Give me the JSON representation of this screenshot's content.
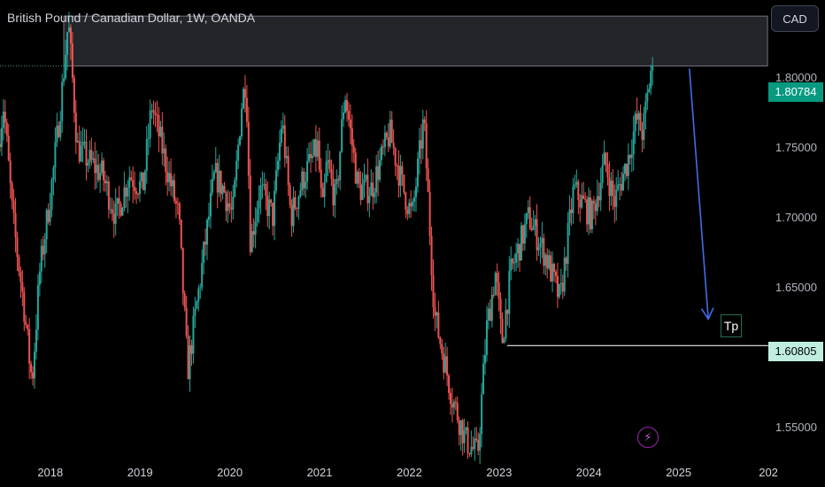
{
  "header": {
    "title": "British Pound / Canadian Dollar, 1W, OANDA",
    "currency_button": "CAD"
  },
  "chart_data": {
    "type": "candlestick",
    "symbol": "GBPCAD",
    "interval": "1W",
    "source": "OANDA",
    "x_ticks": [
      "2018",
      "2019",
      "2020",
      "2021",
      "2022",
      "2023",
      "2024",
      "2025",
      "202"
    ],
    "y_ticks": [
      "1.80000",
      "1.75000",
      "1.70000",
      "1.65000",
      "1.60000",
      "1.55000"
    ],
    "y_tick_values": [
      1.8,
      1.75,
      1.7,
      1.65,
      1.6,
      1.55
    ],
    "ylim": [
      1.526,
      1.855
    ],
    "xlim": [
      2017.44,
      2025.94
    ],
    "current_price_label": "1.80784",
    "target_price_label": "1.60805",
    "target_text": "Tp",
    "resistance_zone": {
      "x_start": 2018.15,
      "x_end": 2025.99,
      "y_low": 1.80784,
      "y_high": 1.8435
    },
    "target_line": {
      "x_start": 2023.09,
      "x_end": 2025.99,
      "y": 1.60805
    },
    "arrow": {
      "from": [
        2025.12,
        1.806
      ],
      "to": [
        2025.33,
        1.627
      ],
      "color": "#3f6ee8"
    },
    "waypoints": [
      [
        2017.44,
        1.752
      ],
      [
        2017.5,
        1.78
      ],
      [
        2017.6,
        1.7
      ],
      [
        2017.72,
        1.64
      ],
      [
        2017.8,
        1.59
      ],
      [
        2017.82,
        1.585
      ],
      [
        2017.9,
        1.66
      ],
      [
        2018.05,
        1.73
      ],
      [
        2018.15,
        1.79
      ],
      [
        2018.22,
        1.84
      ],
      [
        2018.32,
        1.75
      ],
      [
        2018.45,
        1.74
      ],
      [
        2018.6,
        1.73
      ],
      [
        2018.75,
        1.7
      ],
      [
        2018.9,
        1.73
      ],
      [
        2019.05,
        1.72
      ],
      [
        2019.15,
        1.78
      ],
      [
        2019.3,
        1.74
      ],
      [
        2019.45,
        1.7
      ],
      [
        2019.55,
        1.59
      ],
      [
        2019.7,
        1.66
      ],
      [
        2019.85,
        1.73
      ],
      [
        2019.95,
        1.72
      ],
      [
        2020.05,
        1.7
      ],
      [
        2020.15,
        1.78
      ],
      [
        2020.2,
        1.8
      ],
      [
        2020.25,
        1.68
      ],
      [
        2020.35,
        1.72
      ],
      [
        2020.5,
        1.7
      ],
      [
        2020.6,
        1.77
      ],
      [
        2020.7,
        1.7
      ],
      [
        2020.85,
        1.73
      ],
      [
        2021.0,
        1.75
      ],
      [
        2021.05,
        1.7
      ],
      [
        2021.1,
        1.74
      ],
      [
        2021.2,
        1.71
      ],
      [
        2021.3,
        1.79
      ],
      [
        2021.45,
        1.72
      ],
      [
        2021.6,
        1.72
      ],
      [
        2021.8,
        1.76
      ],
      [
        2021.95,
        1.72
      ],
      [
        2022.05,
        1.7
      ],
      [
        2022.18,
        1.77
      ],
      [
        2022.3,
        1.63
      ],
      [
        2022.5,
        1.57
      ],
      [
        2022.65,
        1.54
      ],
      [
        2022.78,
        1.53
      ],
      [
        2022.88,
        1.62
      ],
      [
        2022.98,
        1.66
      ],
      [
        2023.05,
        1.61
      ],
      [
        2023.15,
        1.66
      ],
      [
        2023.35,
        1.7
      ],
      [
        2023.55,
        1.67
      ],
      [
        2023.7,
        1.64
      ],
      [
        2023.85,
        1.72
      ],
      [
        2024.05,
        1.7
      ],
      [
        2024.2,
        1.74
      ],
      [
        2024.3,
        1.71
      ],
      [
        2024.45,
        1.74
      ],
      [
        2024.55,
        1.77
      ],
      [
        2024.62,
        1.76
      ],
      [
        2024.72,
        1.81
      ]
    ]
  }
}
